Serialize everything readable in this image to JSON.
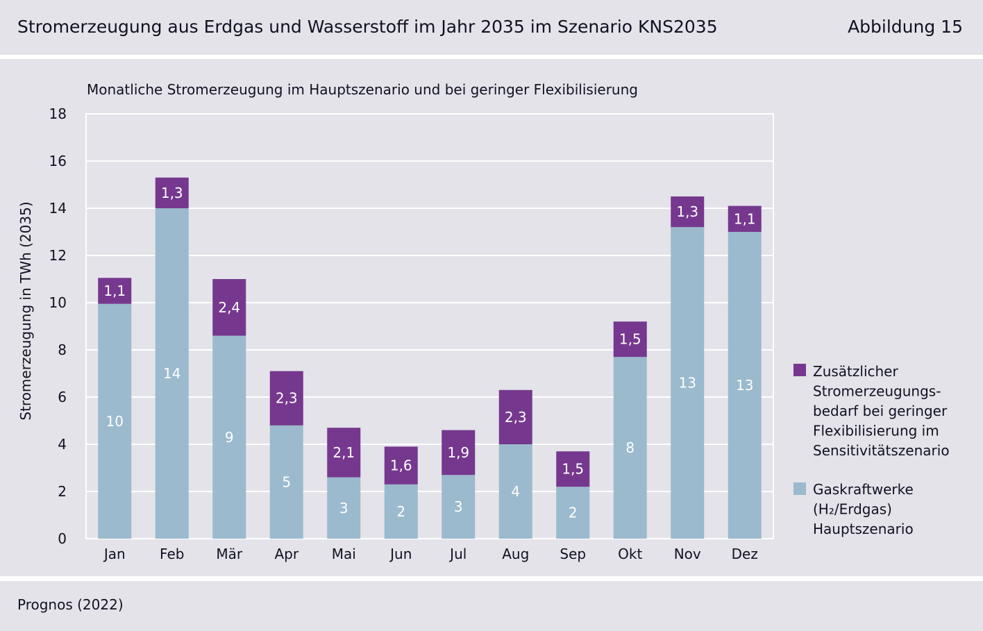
{
  "header": {
    "title": "Stromerzeugung aus Erdgas und Wasserstoff im Jahr 2035 im Szenario KNS2035",
    "figure_number": "Abbildung 15"
  },
  "footer": {
    "source": "Prognos (2022)"
  },
  "colors": {
    "base": "#9bbacd",
    "extra": "#76388e",
    "gridline": "#ffffff",
    "band": "#e3e3e9",
    "text": "#111122"
  },
  "chart_data": {
    "type": "bar",
    "stacked": true,
    "title": "Monatliche Stromerzeugung im Hauptszenario und bei geringer Flexibilisierung",
    "xlabel": "",
    "ylabel": "Stromerzeugung in TWh (2035)",
    "ylim": [
      0,
      18
    ],
    "yticks": [
      "0",
      "2",
      "4",
      "6",
      "8",
      "10",
      "12",
      "14",
      "16",
      "18"
    ],
    "grid": true,
    "legend_position": "right",
    "categories": [
      "Jan",
      "Feb",
      "Mär",
      "Apr",
      "Mai",
      "Jun",
      "Jul",
      "Aug",
      "Sep",
      "Okt",
      "Nov",
      "Dez"
    ],
    "series": [
      {
        "name": "Gaskraftwerke (H₂/Erdgas) Hauptszenario",
        "legend_lines": [
          "Gaskraftwerke",
          "(H₂/Erdgas)",
          "Hauptszenario"
        ],
        "color": "#9bbacd",
        "values": [
          9.95,
          14.0,
          8.6,
          4.8,
          2.6,
          2.3,
          2.7,
          4.0,
          2.2,
          7.7,
          13.2,
          13.0
        ],
        "labels": [
          "10",
          "14",
          "9",
          "5",
          "3",
          "2",
          "3",
          "4",
          "2",
          "8",
          "13",
          "13"
        ]
      },
      {
        "name": "Zusätzlicher Stromerzeugungsbedarf bei geringer Flexibilisierung im Sensitivitätszenario",
        "legend_lines": [
          "Zusätzlicher",
          "Stromerzeugungs-",
          "bedarf bei geringer",
          "Flexibilisierung im",
          "Sensitivitätszenario"
        ],
        "color": "#76388e",
        "values": [
          1.1,
          1.3,
          2.4,
          2.3,
          2.1,
          1.6,
          1.9,
          2.3,
          1.5,
          1.5,
          1.3,
          1.1
        ],
        "labels": [
          "1,1",
          "1,3",
          "2,4",
          "2,3",
          "2,1",
          "1,6",
          "1,9",
          "2,3",
          "1,5",
          "1,5",
          "1,3",
          "1,1"
        ]
      }
    ]
  }
}
